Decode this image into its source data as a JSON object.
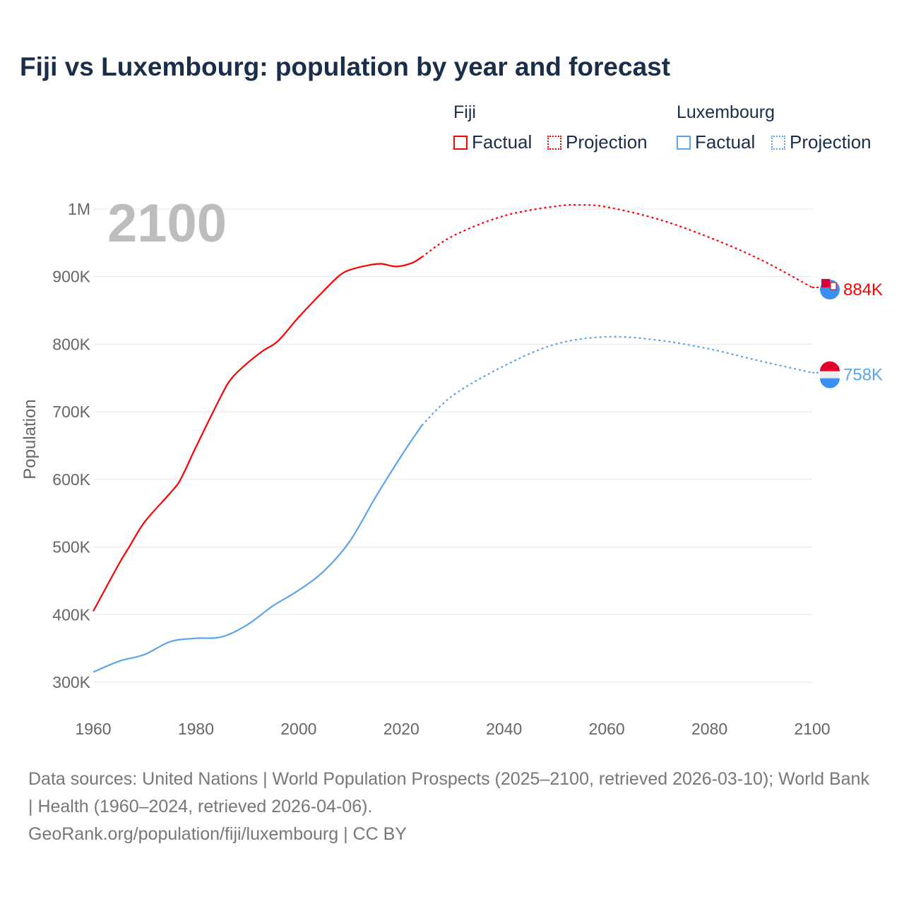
{
  "title": "Fiji vs Luxembourg: population by year and forecast",
  "legend": {
    "groups": [
      {
        "name": "Fiji",
        "factual": "Factual",
        "projection": "Projection"
      },
      {
        "name": "Luxembourg",
        "factual": "Factual",
        "projection": "Projection"
      }
    ]
  },
  "colors": {
    "fiji": "#ff0000",
    "luxembourg": "#5ca4ec"
  },
  "footer": {
    "sources": "Data sources: United Nations | World Population Prospects (2025–2100, retrieved 2026-03-10); World Bank | Health (1960–2024, retrieved 2026-04-06).",
    "link": "GeoRank.org/population/fiji/luxembourg | CC BY"
  },
  "chart_data": {
    "type": "line",
    "title": "Fiji vs Luxembourg: population by year and forecast",
    "current_year_label": "2100",
    "xlabel": "",
    "ylabel": "Population",
    "xlim": [
      1960,
      2100
    ],
    "ylim": [
      300000,
      1000000
    ],
    "xticks": [
      1960,
      1980,
      2000,
      2020,
      2040,
      2060,
      2080,
      2100
    ],
    "xtick_labels": [
      "1960",
      "1980",
      "2000",
      "2020",
      "2040",
      "2060",
      "2080",
      "2100"
    ],
    "yticks": [
      300000,
      400000,
      500000,
      600000,
      700000,
      800000,
      900000,
      1000000
    ],
    "ytick_labels": [
      "300K",
      "400K",
      "500K",
      "600K",
      "700K",
      "800K",
      "900K",
      "1M"
    ],
    "grid": true,
    "series": [
      {
        "name": "Fiji",
        "kind": "factual",
        "x": [
          1960,
          1965,
          1967,
          1970,
          1975,
          1977,
          1980,
          1985,
          1987,
          1990,
          1993,
          1996,
          2000,
          2005,
          2008,
          2010,
          2013,
          2016,
          2019,
          2022,
          2024
        ],
        "y": [
          405000,
          475000,
          500000,
          537000,
          580000,
          600000,
          648000,
          725000,
          750000,
          772000,
          790000,
          805000,
          840000,
          880000,
          902000,
          910000,
          916000,
          919000,
          915000,
          920000,
          929000
        ]
      },
      {
        "name": "Fiji",
        "kind": "projection",
        "x": [
          2024,
          2030,
          2040,
          2050,
          2055,
          2060,
          2070,
          2080,
          2090,
          2100
        ],
        "y": [
          929000,
          960000,
          990000,
          1004000,
          1006000,
          1003000,
          985000,
          958000,
          925000,
          884000
        ]
      },
      {
        "name": "Luxembourg",
        "kind": "factual",
        "x": [
          1960,
          1965,
          1970,
          1975,
          1980,
          1985,
          1990,
          1995,
          2000,
          2005,
          2010,
          2015,
          2020,
          2024
        ],
        "y": [
          315000,
          331000,
          341000,
          360000,
          365000,
          367000,
          385000,
          413000,
          436000,
          465000,
          509000,
          574000,
          635000,
          680000
        ]
      },
      {
        "name": "Luxembourg",
        "kind": "projection",
        "x": [
          2024,
          2030,
          2040,
          2050,
          2060,
          2070,
          2080,
          2090,
          2100
        ],
        "y": [
          680000,
          724000,
          768000,
          800000,
          811000,
          806000,
          793000,
          775000,
          758000
        ]
      }
    ],
    "end_labels": [
      {
        "name": "Fiji",
        "label": "884K"
      },
      {
        "name": "Luxembourg",
        "label": "758K"
      }
    ]
  }
}
